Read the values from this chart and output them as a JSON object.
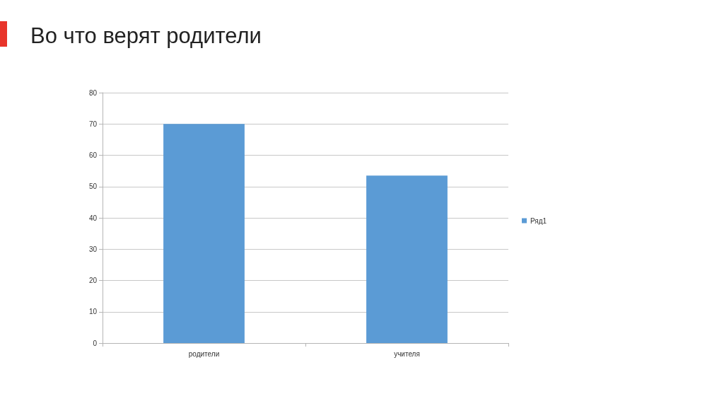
{
  "chart_data": {
    "type": "bar",
    "title": "Во что верят родители",
    "categories": [
      "родители",
      "учителя"
    ],
    "series": [
      {
        "name": "Ряд1",
        "color": "#5b9bd5",
        "values": [
          70,
          53.5
        ]
      }
    ],
    "ylim": [
      0,
      80
    ],
    "yticks": [
      0,
      10,
      20,
      30,
      40,
      50,
      60,
      70,
      80
    ],
    "grid": "y",
    "legend": "right"
  }
}
